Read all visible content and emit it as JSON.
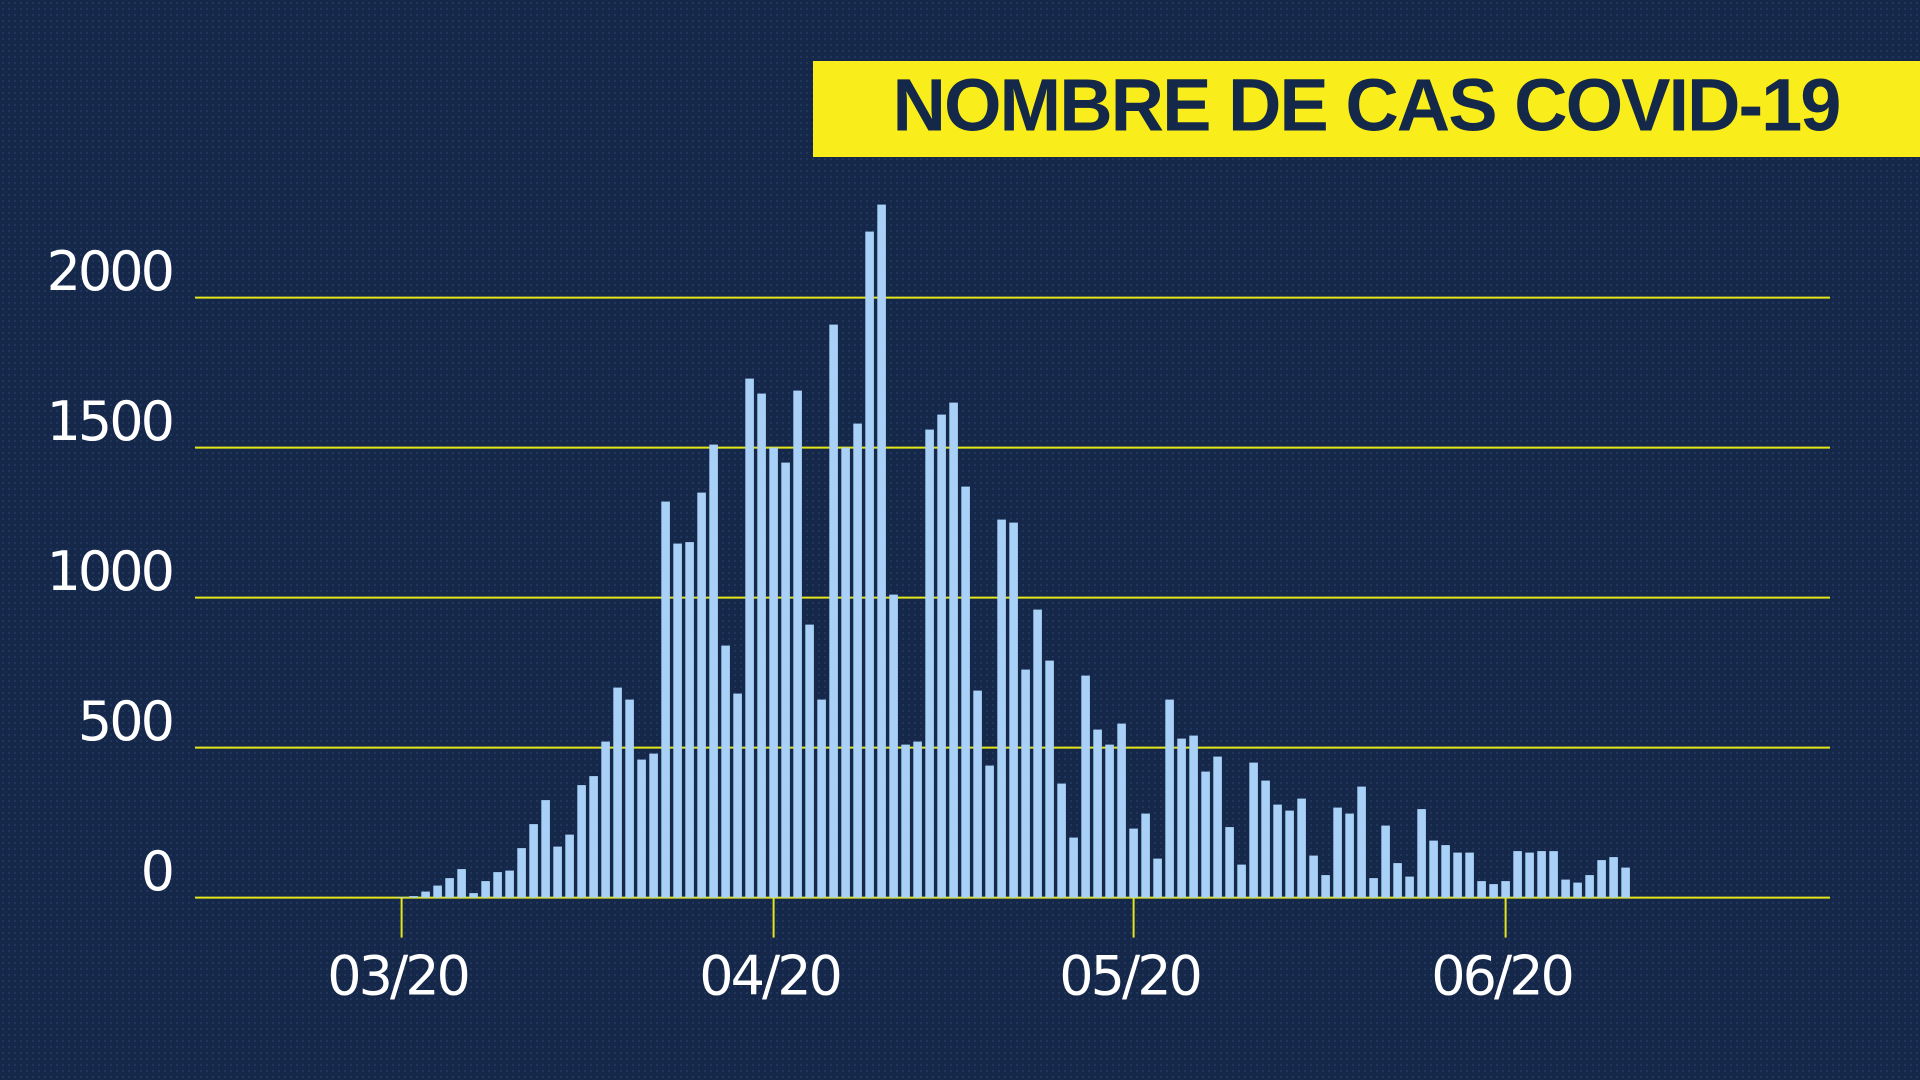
{
  "chart_data": {
    "type": "bar",
    "title": "NOMBRE DE CAS COVID-19",
    "categories": [
      "03/20",
      null,
      null,
      null,
      null,
      null,
      null,
      null,
      null,
      null,
      null,
      null,
      null,
      null,
      null,
      null,
      null,
      null,
      null,
      null,
      null,
      null,
      null,
      null,
      null,
      null,
      null,
      null,
      null,
      null,
      null,
      "04/20",
      null,
      null,
      null,
      null,
      null,
      null,
      null,
      null,
      null,
      null,
      null,
      null,
      null,
      null,
      null,
      null,
      null,
      null,
      null,
      null,
      null,
      null,
      null,
      null,
      null,
      null,
      null,
      null,
      null,
      "05/20",
      null,
      null,
      null,
      null,
      null,
      null,
      null,
      null,
      null,
      null,
      null,
      null,
      null,
      null,
      null,
      null,
      null,
      null,
      null,
      null,
      null,
      null,
      null,
      null,
      null,
      null,
      null,
      null,
      null,
      null,
      "06/20",
      null,
      null,
      null,
      null,
      null,
      null,
      null,
      null,
      null,
      null
    ],
    "values": [
      2,
      5,
      20,
      40,
      65,
      95,
      15,
      55,
      85,
      90,
      165,
      245,
      325,
      170,
      210,
      375,
      405,
      520,
      700,
      660,
      460,
      480,
      1320,
      1180,
      1185,
      1350,
      1510,
      840,
      680,
      1730,
      1680,
      1500,
      1450,
      1690,
      910,
      660,
      1910,
      1500,
      1580,
      2220,
      2310,
      1010,
      510,
      520,
      1560,
      1610,
      1650,
      1370,
      690,
      440,
      1260,
      1250,
      760,
      960,
      790,
      380,
      200,
      740,
      560,
      510,
      580,
      230,
      280,
      130,
      660,
      530,
      540,
      420,
      470,
      235,
      110,
      450,
      390,
      310,
      290,
      330,
      140,
      75,
      300,
      280,
      370,
      65,
      240,
      115,
      70,
      295,
      190,
      175,
      150,
      150,
      55,
      45,
      55,
      155,
      150,
      155,
      155,
      60,
      50,
      75,
      125,
      135,
      100
    ],
    "color": "#a9d1f7",
    "ylim": [
      0,
      2400
    ],
    "yticks": [
      0,
      500,
      1000,
      1500,
      2000
    ],
    "grid": true
  }
}
